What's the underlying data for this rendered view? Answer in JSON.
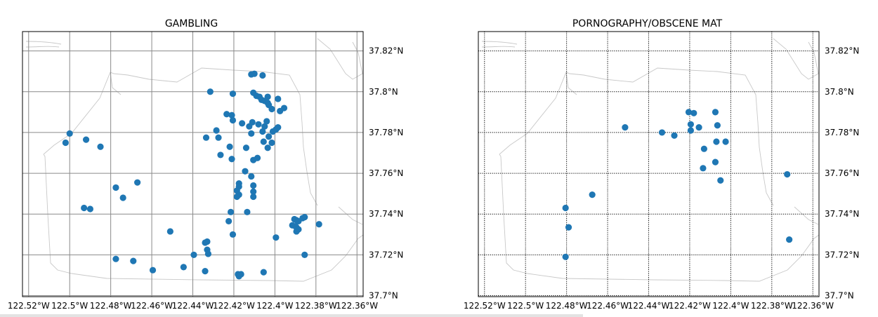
{
  "chart_data": [
    {
      "type": "scatter",
      "title": "GAMBLING",
      "xlim": [
        -122.523,
        -122.357
      ],
      "ylim": [
        37.6995,
        37.8295
      ],
      "x_ticks": [
        -122.52,
        -122.5,
        -122.48,
        -122.46,
        -122.44,
        -122.42,
        -122.4,
        -122.38,
        -122.36
      ],
      "x_tick_labels": [
        "122.52°W",
        "122.5°W",
        "122.48°W",
        "122.46°W",
        "122.44°W",
        "122.42°W",
        "122.4°W",
        "122.38°W",
        "122.36°W"
      ],
      "y_ticks": [
        37.7,
        37.72,
        37.74,
        37.76,
        37.78,
        37.8,
        37.82
      ],
      "y_tick_labels": [
        "37.7°N",
        "37.72°N",
        "37.74°N",
        "37.76°N",
        "37.78°N",
        "37.8°N",
        "37.82°N"
      ],
      "grid": "solid",
      "color": "#1f77b4",
      "points": [
        [
          -122.5,
          37.7795
        ],
        [
          -122.502,
          37.775
        ],
        [
          -122.492,
          37.7765
        ],
        [
          -122.485,
          37.773
        ],
        [
          -122.4775,
          37.753
        ],
        [
          -122.467,
          37.7555
        ],
        [
          -122.474,
          37.748
        ],
        [
          -122.493,
          37.743
        ],
        [
          -122.49,
          37.7425
        ],
        [
          -122.451,
          37.7315
        ],
        [
          -122.4775,
          37.718
        ],
        [
          -122.469,
          37.717
        ],
        [
          -122.4595,
          37.7125
        ],
        [
          -122.4445,
          37.714
        ],
        [
          -122.4395,
          37.72
        ],
        [
          -122.434,
          37.726
        ],
        [
          -122.433,
          37.7265
        ],
        [
          -122.433,
          37.7225
        ],
        [
          -122.4325,
          37.7205
        ],
        [
          -122.434,
          37.712
        ],
        [
          -122.4315,
          37.8
        ],
        [
          -122.4205,
          37.799
        ],
        [
          -122.4115,
          37.8085
        ],
        [
          -122.41,
          37.8088
        ],
        [
          -122.406,
          37.808
        ],
        [
          -122.4285,
          37.781
        ],
        [
          -122.4275,
          37.7775
        ],
        [
          -122.4335,
          37.7775
        ],
        [
          -122.4235,
          37.789
        ],
        [
          -122.421,
          37.7885
        ],
        [
          -122.4205,
          37.786
        ],
        [
          -122.416,
          37.7845
        ],
        [
          -122.4125,
          37.783
        ],
        [
          -122.411,
          37.785
        ],
        [
          -122.408,
          37.784
        ],
        [
          -122.405,
          37.783
        ],
        [
          -122.404,
          37.7855
        ],
        [
          -122.4115,
          37.7795
        ],
        [
          -122.406,
          37.7805
        ],
        [
          -122.403,
          37.778
        ],
        [
          -122.4015,
          37.775
        ],
        [
          -122.4035,
          37.7725
        ],
        [
          -122.4055,
          37.7755
        ],
        [
          -122.4105,
          37.7995
        ],
        [
          -122.409,
          37.798
        ],
        [
          -122.4075,
          37.7975
        ],
        [
          -122.4065,
          37.796
        ],
        [
          -122.405,
          37.7955
        ],
        [
          -122.4035,
          37.7975
        ],
        [
          -122.4035,
          37.7945
        ],
        [
          -122.403,
          37.7935
        ],
        [
          -122.4015,
          37.7915
        ],
        [
          -122.3985,
          37.7965
        ],
        [
          -122.3975,
          37.7905
        ],
        [
          -122.3955,
          37.792
        ],
        [
          -122.3995,
          37.7815
        ],
        [
          -122.401,
          37.7805
        ],
        [
          -122.3985,
          37.7825
        ],
        [
          -122.422,
          37.773
        ],
        [
          -122.4265,
          37.769
        ],
        [
          -122.421,
          37.767
        ],
        [
          -122.414,
          37.7725
        ],
        [
          -122.4105,
          37.7665
        ],
        [
          -122.4085,
          37.7675
        ],
        [
          -122.4145,
          37.761
        ],
        [
          -122.4115,
          37.7585
        ],
        [
          -122.4105,
          37.754
        ],
        [
          -122.4175,
          37.755
        ],
        [
          -122.4175,
          37.7535
        ],
        [
          -122.4185,
          37.7515
        ],
        [
          -122.4175,
          37.7495
        ],
        [
          -122.4185,
          37.7485
        ],
        [
          -122.4105,
          37.751
        ],
        [
          -122.4105,
          37.7485
        ],
        [
          -122.4215,
          37.741
        ],
        [
          -122.4225,
          37.7365
        ],
        [
          -122.4205,
          37.73
        ],
        [
          -122.4135,
          37.741
        ],
        [
          -122.4175,
          37.7095
        ],
        [
          -122.418,
          37.7105
        ],
        [
          -122.4165,
          37.7105
        ],
        [
          -122.4055,
          37.7115
        ],
        [
          -122.3995,
          37.7285
        ],
        [
          -122.3905,
          37.7375
        ],
        [
          -122.3895,
          37.737
        ],
        [
          -122.3885,
          37.7365
        ],
        [
          -122.3915,
          37.7345
        ],
        [
          -122.39,
          37.734
        ],
        [
          -122.3895,
          37.7335
        ],
        [
          -122.3885,
          37.7325
        ],
        [
          -122.3895,
          37.7315
        ],
        [
          -122.3865,
          37.738
        ],
        [
          -122.3855,
          37.7385
        ],
        [
          -122.3785,
          37.735
        ],
        [
          -122.3855,
          37.72
        ]
      ]
    },
    {
      "type": "scatter",
      "title": "PORNOGRAPHY/OBSCENE MAT",
      "xlim": [
        -122.523,
        -122.357
      ],
      "ylim": [
        37.6995,
        37.8295
      ],
      "x_ticks": [
        -122.52,
        -122.5,
        -122.48,
        -122.46,
        -122.44,
        -122.42,
        -122.4,
        -122.38,
        -122.36
      ],
      "x_tick_labels": [
        "122.52°W",
        "122.5°W",
        "122.48°W",
        "122.46°W",
        "122.44°W",
        "122.42°W",
        "122.4°W",
        "122.38°W",
        "122.36°W"
      ],
      "y_ticks": [
        37.7,
        37.72,
        37.74,
        37.76,
        37.78,
        37.8,
        37.82
      ],
      "y_tick_labels": [
        "37.7°N",
        "37.72°N",
        "37.74°N",
        "37.76°N",
        "37.78°N",
        "37.8°N",
        "37.82°N"
      ],
      "grid": "dotted",
      "color": "#1f77b4",
      "points": [
        [
          -122.4515,
          37.7825
        ],
        [
          -122.4335,
          37.78
        ],
        [
          -122.4275,
          37.7785
        ],
        [
          -122.4205,
          37.79
        ],
        [
          -122.418,
          37.7895
        ],
        [
          -122.4075,
          37.79
        ],
        [
          -122.4195,
          37.784
        ],
        [
          -122.4195,
          37.781
        ],
        [
          -122.4155,
          37.7825
        ],
        [
          -122.4065,
          37.7835
        ],
        [
          -122.413,
          37.772
        ],
        [
          -122.407,
          37.7755
        ],
        [
          -122.4025,
          37.7755
        ],
        [
          -122.4075,
          37.7655
        ],
        [
          -122.4135,
          37.7625
        ],
        [
          -122.405,
          37.7565
        ],
        [
          -122.3725,
          37.7595
        ],
        [
          -122.3715,
          37.7275
        ],
        [
          -122.4675,
          37.7495
        ],
        [
          -122.4805,
          37.743
        ],
        [
          -122.479,
          37.7335
        ],
        [
          -122.4805,
          37.719
        ]
      ]
    }
  ]
}
